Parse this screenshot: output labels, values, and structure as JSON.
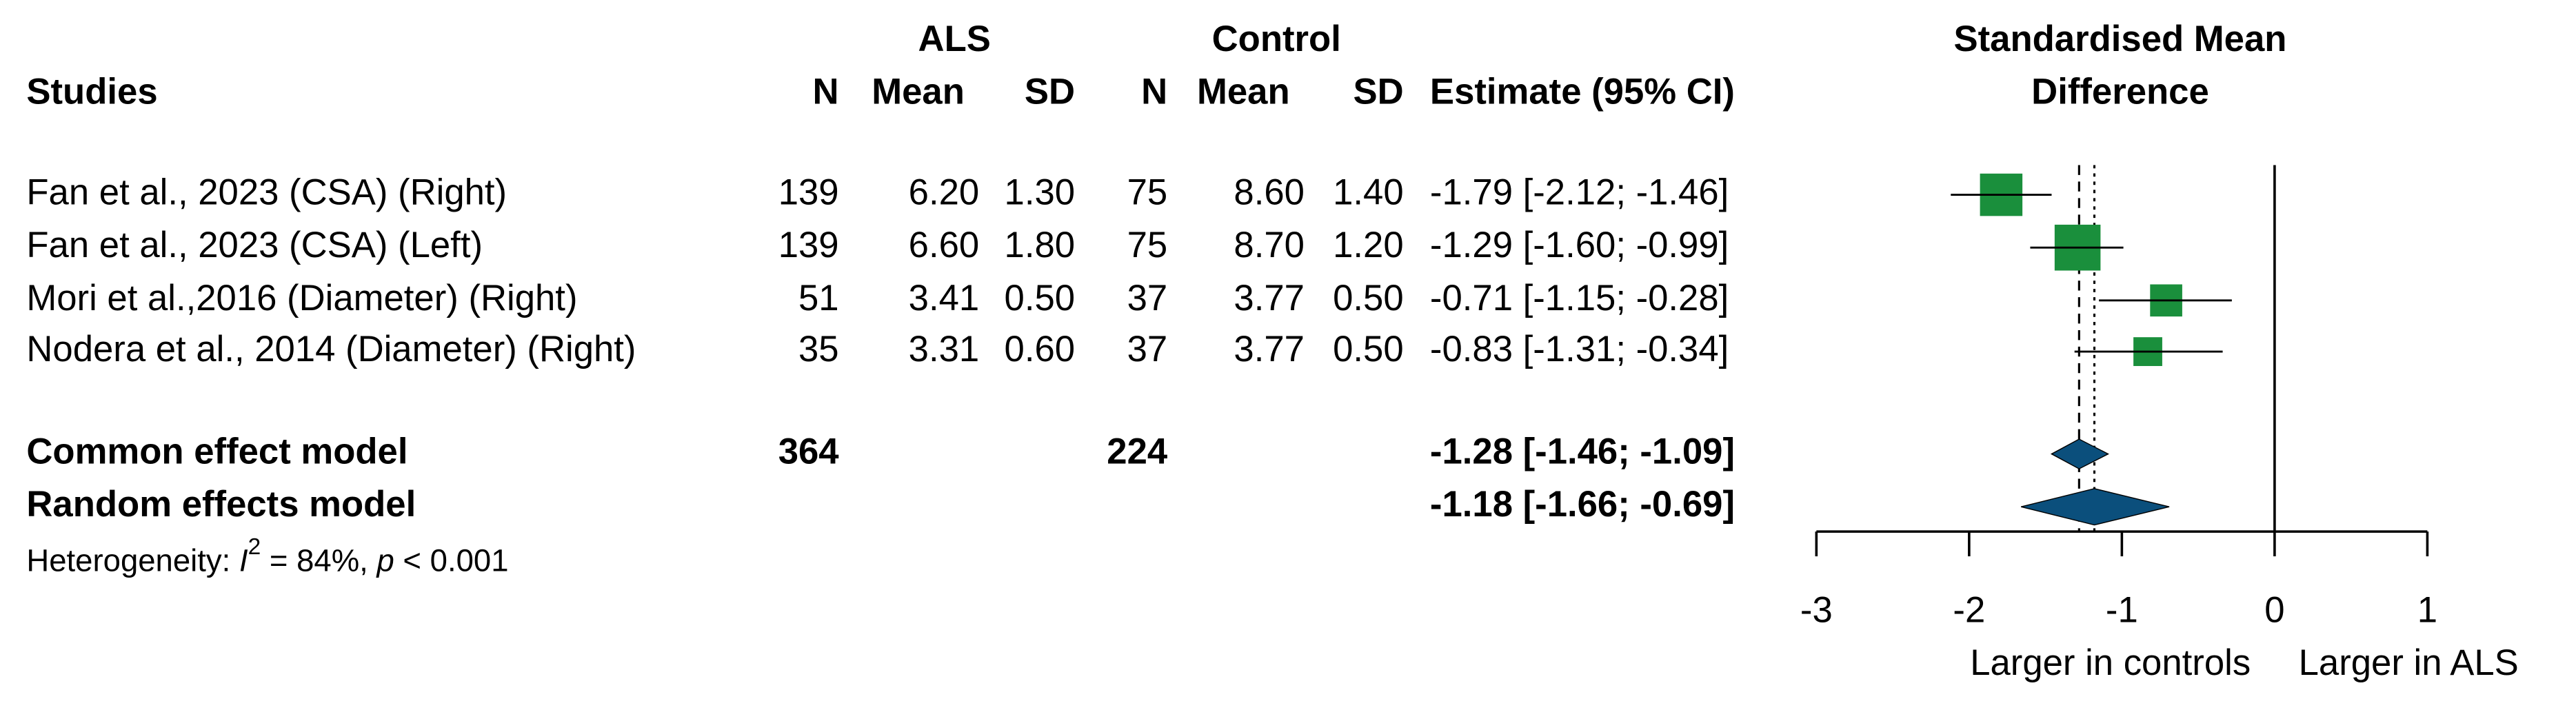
{
  "chart_data": {
    "type": "forest",
    "group_headers": [
      "ALS",
      "Control"
    ],
    "columns": [
      "Studies",
      "N",
      "Mean",
      "SD",
      "N",
      "Mean",
      "SD",
      "Estimate (95% CI)"
    ],
    "plot_title": [
      "Standardised Mean",
      "Difference"
    ],
    "studies": [
      {
        "cells": [
          "Fan et al., 2023 (CSA) (Right)",
          "139",
          "6.20",
          "1.30",
          "75",
          "8.60",
          "1.40",
          "-1.79 [-2.12; -1.46]"
        ],
        "estimate": -1.79,
        "ci": [
          -2.12,
          -1.46
        ],
        "weight": 31.2
      },
      {
        "cells": [
          "Fan et al., 2023 (CSA) (Left)",
          "139",
          "6.60",
          "1.80",
          "75",
          "8.70",
          "1.20",
          "-1.29 [-1.60; -0.99]"
        ],
        "estimate": -1.29,
        "ci": [
          -1.6,
          -0.99
        ],
        "weight": 36.5
      },
      {
        "cells": [
          "Mori et al.,2016 (Diameter) (Right)",
          "51",
          "3.41",
          "0.50",
          "37",
          "3.77",
          "0.50",
          "-0.71 [-1.15; -0.28]"
        ],
        "estimate": -0.71,
        "ci": [
          -1.15,
          -0.28
        ],
        "weight": 17.9
      },
      {
        "cells": [
          "Nodera et al., 2014 (Diameter) (Right)",
          "35",
          "3.31",
          "0.60",
          "37",
          "3.77",
          "0.50",
          "-0.83 [-1.31; -0.34]"
        ],
        "estimate": -0.83,
        "ci": [
          -1.31,
          -0.34
        ],
        "weight": 14.4
      }
    ],
    "summaries": [
      {
        "label": "Common effect model",
        "n_als": "364",
        "n_control": "224",
        "estimate_label": "-1.28 [-1.46; -1.09]",
        "estimate": -1.28,
        "ci": [
          -1.46,
          -1.09
        ],
        "line": "dashed"
      },
      {
        "label": "Random effects model",
        "estimate_label": "-1.18 [-1.66; -0.69]",
        "estimate": -1.18,
        "ci": [
          -1.66,
          -0.69
        ],
        "line": "dotted"
      }
    ],
    "heterogeneity": [
      "Heterogeneity: ",
      "I",
      "2",
      " = 84%, ",
      "p",
      " < 0.001"
    ],
    "xlim": [
      -3,
      1
    ],
    "xticks": [
      -3,
      -2,
      -1,
      0,
      1
    ],
    "null_effect": 0,
    "xlabels": [
      "Larger in controls",
      "Larger in ALS"
    ],
    "square_color": "#1a8f3c",
    "diamond_color": "#0b4f7c"
  }
}
